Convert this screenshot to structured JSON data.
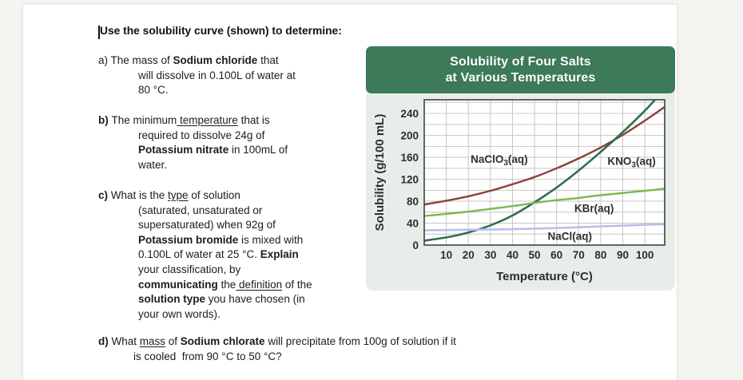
{
  "page": {
    "background": "#f6f4f1",
    "paper_color": "#ffffff"
  },
  "document": {
    "title": "Use the solubility curve (shown) to determine:",
    "questions": [
      {
        "label": "a)",
        "label_bold": false,
        "indent": 50,
        "lines": [
          [
            {
              "t": "The mass of "
            },
            {
              "t": "Sodium chloride",
              "b": true
            },
            {
              "t": " that"
            }
          ],
          [
            {
              "t": "will dissolve in 0.100L of water at"
            }
          ],
          [
            {
              "t": "80 °C."
            }
          ]
        ]
      },
      {
        "label": "b)",
        "label_bold": true,
        "indent": 50,
        "lines": [
          [
            {
              "t": "The minimum"
            },
            {
              "t": " temperature",
              "u": true
            },
            {
              "t": " that is"
            }
          ],
          [
            {
              "t": "required to dissolve 24g of"
            }
          ],
          [
            {
              "t": "Potassium nitrate",
              "b": true
            },
            {
              "t": " in 100mL of"
            }
          ],
          [
            {
              "t": "water."
            }
          ]
        ]
      },
      {
        "label": "c)",
        "label_bold": true,
        "indent": 50,
        "lines": [
          [
            {
              "t": "What is the "
            },
            {
              "t": "type",
              "u": true
            },
            {
              "t": " of solution"
            }
          ],
          [
            {
              "t": "(saturated, unsaturated or"
            }
          ],
          [
            {
              "t": "supersaturated) when 92g of"
            }
          ],
          [
            {
              "t": "Potassium bromide",
              "b": true
            },
            {
              "t": " is mixed with"
            }
          ],
          [
            {
              "t": "0.100L of water at 25 °C. "
            },
            {
              "t": "Explain",
              "b": true
            }
          ],
          [
            {
              "t": "your classification, by"
            }
          ],
          [
            {
              "t": "communicating",
              "b": true
            },
            {
              "t": " the"
            },
            {
              "t": " definition",
              "u": true
            },
            {
              "t": " of the"
            }
          ],
          [
            {
              "t": "solution type",
              "b": true
            },
            {
              "t": " you have chosen (in"
            }
          ],
          [
            {
              "t": "your own words)."
            }
          ]
        ]
      },
      {
        "label": "d)",
        "label_bold": true,
        "indent": 44,
        "lines": [
          [
            {
              "t": "What "
            },
            {
              "t": "mass",
              "u": true
            },
            {
              "t": " of "
            },
            {
              "t": "Sodium chlorate",
              "b": true
            },
            {
              "t": " will precipitate from 100g of solution if it"
            }
          ],
          [
            {
              "t": "is cooled  from 90 °C to 50 °C?"
            }
          ]
        ]
      }
    ]
  },
  "chart": {
    "header_line1": "Solubility of Four Salts",
    "header_line2": "at Various Temperatures",
    "colors": {
      "header_bg": "#3d7a57",
      "card_bg": "#e7eeea",
      "plot_bg": "#ffffff",
      "plot_border": "#404040",
      "grid": "#c6c6c6",
      "tick_text": "#2d2d2d",
      "series_label_text": "#303030"
    }
  },
  "chart_data": {
    "type": "line",
    "title": "Solubility of Four Salts at Various Temperatures",
    "xlabel": "Temperature (°C)",
    "ylabel": "Solubility (g/100 mL)",
    "xlim": [
      0,
      109
    ],
    "ylim": [
      0,
      265
    ],
    "x_ticks": [
      10,
      20,
      30,
      40,
      50,
      60,
      70,
      80,
      90,
      100
    ],
    "y_ticks": [
      0,
      40,
      80,
      120,
      160,
      200,
      240
    ],
    "x_grid_step": 10,
    "y_grid_step": 20,
    "grid": true,
    "legend_position": "labels-on-plot",
    "series": [
      {
        "name": "NaClO3(aq)",
        "color": "#8a4138",
        "width": 2.4,
        "label_parts": [
          {
            "t": "NaClO"
          },
          {
            "t": "3",
            "sub": true
          },
          {
            "t": "(aq)"
          }
        ],
        "label_at": [
          34,
          156
        ],
        "x": [
          0,
          10,
          20,
          30,
          40,
          50,
          60,
          70,
          80,
          90,
          100,
          109
        ],
        "values": [
          74,
          81,
          89,
          99,
          111,
          124,
          140,
          158,
          178,
          201,
          227,
          252
        ]
      },
      {
        "name": "KNO3(aq)",
        "color": "#2f6e52",
        "width": 2.6,
        "label_parts": [
          {
            "t": "KNO"
          },
          {
            "t": "3",
            "sub": true
          },
          {
            "t": "(aq)"
          }
        ],
        "label_at": [
          94,
          152
        ],
        "x": [
          0,
          10,
          20,
          30,
          40,
          50,
          60,
          70,
          80,
          90,
          100,
          105
        ],
        "values": [
          8,
          14,
          23,
          36,
          54,
          78,
          105,
          136,
          170,
          206,
          245,
          267
        ]
      },
      {
        "name": "KBr(aq)",
        "color": "#7cb84e",
        "width": 2.4,
        "label_parts": [
          {
            "t": "KBr(aq)"
          }
        ],
        "label_at": [
          77,
          66
        ],
        "x": [
          0,
          10,
          20,
          30,
          40,
          50,
          60,
          70,
          80,
          90,
          100,
          109
        ],
        "values": [
          53,
          57,
          61,
          66,
          71,
          77,
          82,
          86,
          91,
          95,
          99,
          103
        ]
      },
      {
        "name": "NaCl(aq)",
        "color": "#b7bfe9",
        "width": 2.6,
        "label_parts": [
          {
            "t": "NaCl(aq)"
          }
        ],
        "label_at": [
          66,
          15
        ],
        "x": [
          0,
          20,
          40,
          60,
          80,
          100,
          109
        ],
        "values": [
          27,
          28,
          29,
          31,
          34,
          37,
          38
        ]
      }
    ]
  }
}
